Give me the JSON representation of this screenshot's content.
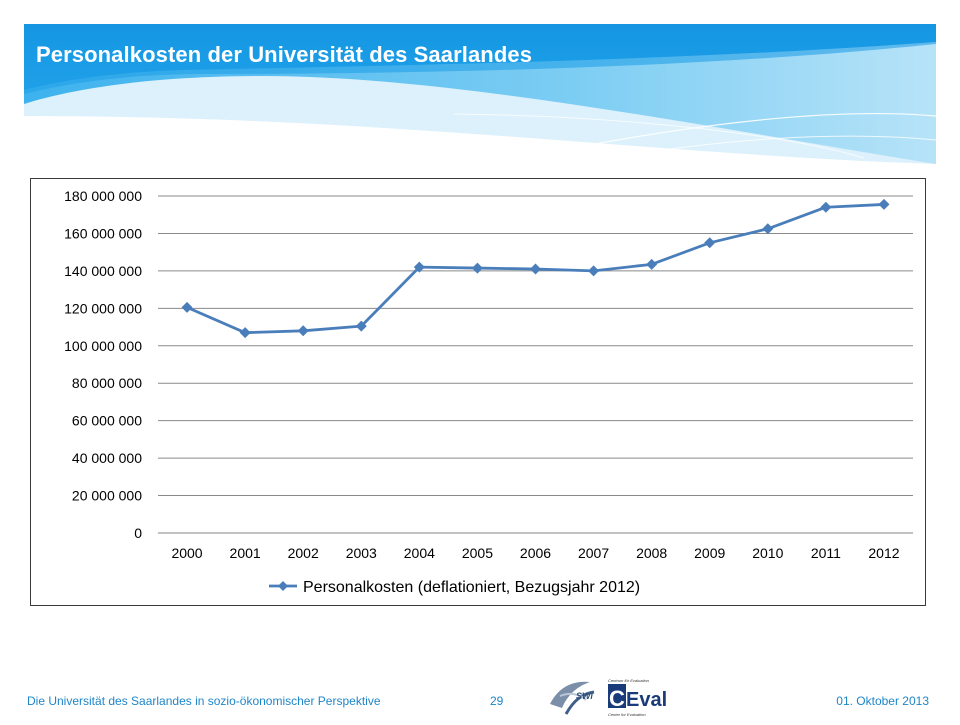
{
  "slide": {
    "title": "Personalkosten der Universität des Saarlandes",
    "accent_color": "#1fa0e8",
    "footer_left": "Die Universität des Saarlandes in sozio-ökonomischer Perspektive",
    "page_number": "29",
    "date": "01. Oktober 2013"
  },
  "logos": {
    "swi_text": "SWi",
    "ceval_text": "CEval",
    "ceval_top_caption": "Centrum für Evaluation",
    "ceval_bottom_caption": "Center for Evaluation"
  },
  "chart_data": {
    "type": "line",
    "title": "",
    "xlabel": "",
    "ylabel": "",
    "categories": [
      "2000",
      "2001",
      "2002",
      "2003",
      "2004",
      "2005",
      "2006",
      "2007",
      "2008",
      "2009",
      "2010",
      "2011",
      "2012"
    ],
    "series": [
      {
        "name": "Personalkosten (deflationiert, Bezugsjahr 2012)",
        "color": "#4a7ebb",
        "marker": "diamond",
        "values": [
          120500000,
          107000000,
          108000000,
          110500000,
          142000000,
          141500000,
          141000000,
          140000000,
          143500000,
          155000000,
          162500000,
          174000000,
          175500000
        ]
      }
    ],
    "ylim": [
      0,
      180000000
    ],
    "yticks": [
      0,
      20000000,
      40000000,
      60000000,
      80000000,
      100000000,
      120000000,
      140000000,
      160000000,
      180000000
    ],
    "ytick_labels": [
      "0",
      "20 000 000",
      "40 000 000",
      "60 000 000",
      "80 000 000",
      "100 000 000",
      "120 000 000",
      "140 000 000",
      "160 000 000",
      "180 000 000"
    ],
    "grid": true,
    "legend_position": "bottom"
  }
}
